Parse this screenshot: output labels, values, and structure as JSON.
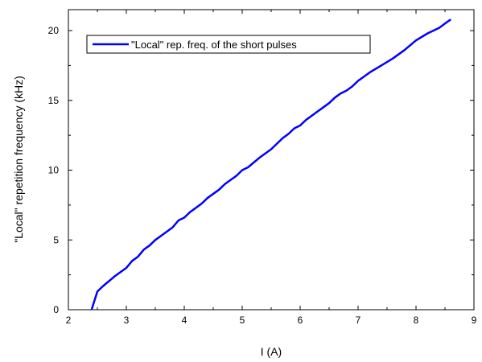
{
  "chart_data": {
    "type": "line",
    "title": "",
    "xlabel": "I (A)",
    "ylabel": "\"Local\" repetition frequency (kHz)",
    "xlim": [
      2,
      9
    ],
    "ylim": [
      0,
      21.5
    ],
    "x_ticks": [
      2,
      3,
      4,
      5,
      6,
      7,
      8,
      9
    ],
    "y_ticks": [
      0,
      5,
      10,
      15,
      20
    ],
    "grid": false,
    "legend_position": "top-left",
    "series": [
      {
        "name": "\"Local\" rep. freq. of the short pulses",
        "color": "#0000ff",
        "x": [
          2.4,
          2.5,
          2.6,
          2.8,
          3.0,
          3.1,
          3.2,
          3.3,
          3.4,
          3.5,
          3.6,
          3.8,
          3.9,
          4.0,
          4.1,
          4.3,
          4.4,
          4.6,
          4.7,
          4.9,
          5.0,
          5.1,
          5.3,
          5.5,
          5.7,
          5.8,
          5.9,
          6.0,
          6.1,
          6.3,
          6.5,
          6.6,
          6.7,
          6.8,
          6.9,
          7.0,
          7.2,
          7.4,
          7.6,
          7.8,
          8.0,
          8.2,
          8.4,
          8.5,
          8.6
        ],
        "y": [
          0.0,
          1.3,
          1.7,
          2.4,
          3.0,
          3.5,
          3.8,
          4.3,
          4.6,
          5.0,
          5.3,
          5.9,
          6.4,
          6.6,
          7.0,
          7.6,
          8.0,
          8.6,
          9.0,
          9.6,
          10.0,
          10.2,
          10.9,
          11.5,
          12.3,
          12.6,
          13.0,
          13.2,
          13.6,
          14.2,
          14.8,
          15.2,
          15.5,
          15.7,
          16.0,
          16.4,
          17.0,
          17.5,
          18.0,
          18.6,
          19.3,
          19.8,
          20.2,
          20.5,
          20.8
        ]
      }
    ]
  }
}
